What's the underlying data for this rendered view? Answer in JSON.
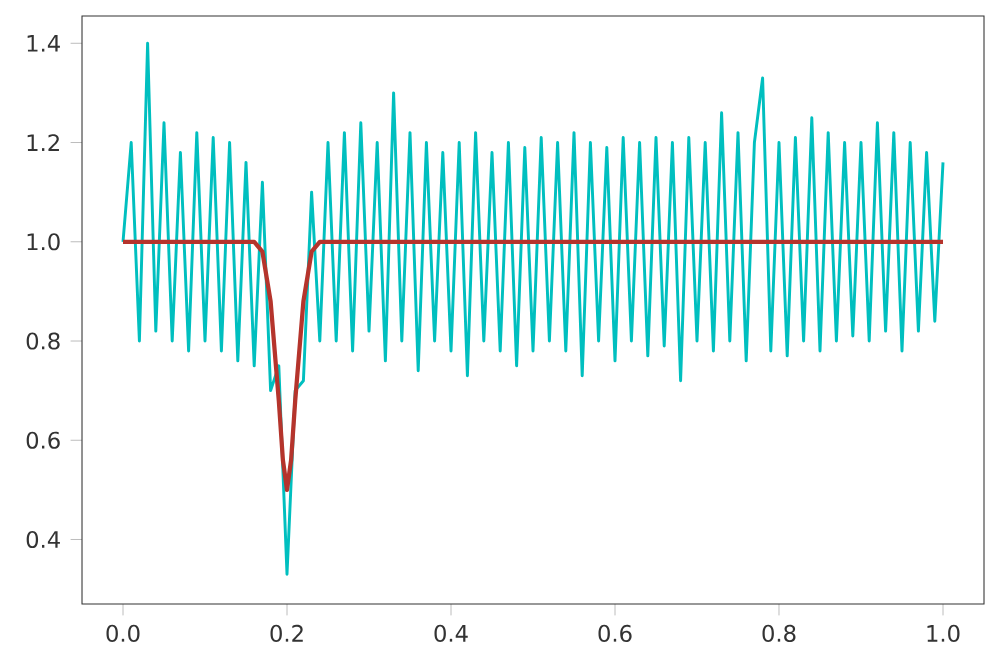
{
  "chart_data": {
    "type": "line",
    "marker": "none",
    "grid": false,
    "xlim": [
      -0.05,
      1.05
    ],
    "ylim": [
      0.27,
      1.455
    ],
    "xticks": [
      {
        "value": 0.0,
        "label": "0.0"
      },
      {
        "value": 0.2,
        "label": "0.2"
      },
      {
        "value": 0.4,
        "label": "0.4"
      },
      {
        "value": 0.6,
        "label": "0.6"
      },
      {
        "value": 0.8,
        "label": "0.8"
      },
      {
        "value": 1.0,
        "label": "1.0"
      }
    ],
    "yticks": [
      {
        "value": 0.4,
        "label": "0.4"
      },
      {
        "value": 0.6,
        "label": "0.6"
      },
      {
        "value": 0.8,
        "label": "0.8"
      },
      {
        "value": 1.0,
        "label": "1.0"
      },
      {
        "value": 1.2,
        "label": "1.2"
      },
      {
        "value": 1.4,
        "label": "1.4"
      }
    ],
    "series": [
      {
        "color": "#00bfbf",
        "x": [
          0.0,
          0.01,
          0.02,
          0.03,
          0.04,
          0.05,
          0.06,
          0.07,
          0.08,
          0.09,
          0.1,
          0.11,
          0.12,
          0.13,
          0.14,
          0.15,
          0.16,
          0.17,
          0.18,
          0.19,
          0.2,
          0.21,
          0.22,
          0.23,
          0.24,
          0.25,
          0.26,
          0.27,
          0.28,
          0.29,
          0.3,
          0.31,
          0.32,
          0.33,
          0.34,
          0.35,
          0.36,
          0.37,
          0.38,
          0.39,
          0.4,
          0.41,
          0.42,
          0.43,
          0.44,
          0.45,
          0.46,
          0.47,
          0.48,
          0.49,
          0.5,
          0.51,
          0.52,
          0.53,
          0.54,
          0.55,
          0.56,
          0.57,
          0.58,
          0.59,
          0.6,
          0.61,
          0.62,
          0.63,
          0.64,
          0.65,
          0.66,
          0.67,
          0.68,
          0.69,
          0.7,
          0.71,
          0.72,
          0.73,
          0.74,
          0.75,
          0.76,
          0.77,
          0.78,
          0.79,
          0.8,
          0.81,
          0.82,
          0.83,
          0.84,
          0.85,
          0.86,
          0.87,
          0.88,
          0.89,
          0.9,
          0.91,
          0.92,
          0.93,
          0.94,
          0.95,
          0.96,
          0.97,
          0.98,
          0.99,
          1.0
        ],
        "values": [
          1.0,
          1.2,
          0.8,
          1.4,
          0.82,
          1.24,
          0.8,
          1.18,
          0.78,
          1.22,
          0.8,
          1.21,
          0.78,
          1.2,
          0.76,
          1.16,
          0.75,
          1.12,
          0.7,
          0.75,
          0.33,
          0.7,
          0.72,
          1.1,
          0.8,
          1.2,
          0.8,
          1.22,
          0.78,
          1.24,
          0.82,
          1.2,
          0.76,
          1.3,
          0.8,
          1.22,
          0.74,
          1.2,
          0.8,
          1.18,
          0.78,
          1.2,
          0.73,
          1.22,
          0.8,
          1.18,
          0.78,
          1.2,
          0.75,
          1.19,
          0.78,
          1.21,
          0.8,
          1.2,
          0.78,
          1.22,
          0.73,
          1.2,
          0.8,
          1.19,
          0.76,
          1.21,
          0.8,
          1.2,
          0.77,
          1.21,
          0.79,
          1.2,
          0.72,
          1.21,
          0.8,
          1.2,
          0.78,
          1.26,
          0.8,
          1.22,
          0.76,
          1.2,
          1.33,
          0.78,
          1.2,
          0.77,
          1.21,
          0.8,
          1.25,
          0.78,
          1.22,
          0.8,
          1.2,
          0.81,
          1.2,
          0.8,
          1.24,
          0.82,
          1.22,
          0.78,
          1.2,
          0.82,
          1.18,
          0.84,
          1.16
        ]
      },
      {
        "color": "#b5342c",
        "x": [
          0.0,
          0.15,
          0.16,
          0.17,
          0.18,
          0.19,
          0.195,
          0.2,
          0.205,
          0.21,
          0.22,
          0.23,
          0.24,
          0.25,
          1.0
        ],
        "values": [
          1.0,
          1.0,
          1.0,
          0.98,
          0.88,
          0.68,
          0.56,
          0.5,
          0.56,
          0.68,
          0.88,
          0.98,
          1.0,
          1.0,
          1.0
        ]
      }
    ]
  }
}
